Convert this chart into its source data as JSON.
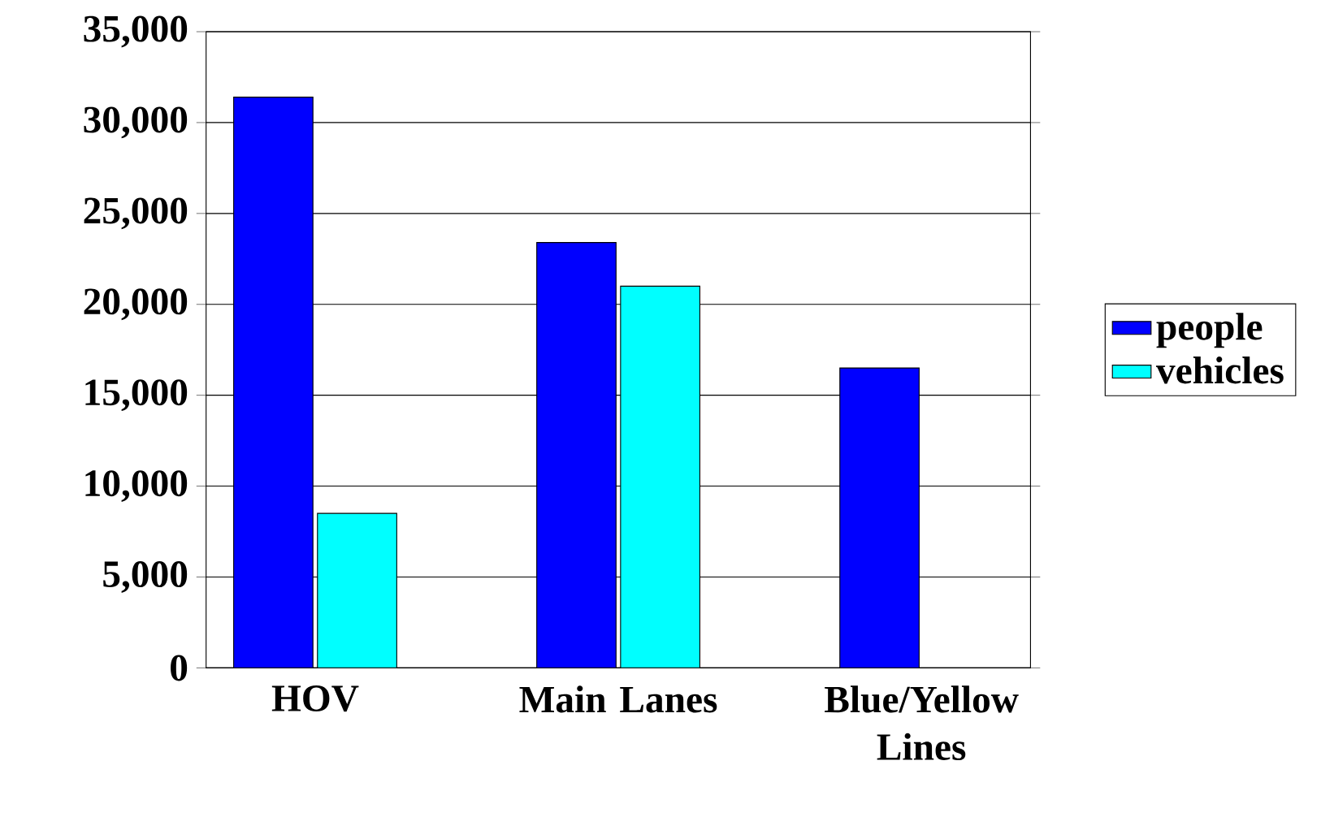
{
  "chart_data": {
    "type": "bar",
    "categories": [
      "HOV",
      "Main Lanes",
      "Blue/Yellow Lines"
    ],
    "series": [
      {
        "name": "people",
        "color": "#0000ff",
        "values": [
          31400,
          23400,
          16500
        ]
      },
      {
        "name": "vehicles",
        "color": "#00ffff",
        "values": [
          8500,
          21000,
          null
        ]
      }
    ],
    "ylim": [
      0,
      35000
    ],
    "yticks": [
      {
        "value": 0,
        "label": "0"
      },
      {
        "value": 5000,
        "label": "5,000"
      },
      {
        "value": 10000,
        "label": "10,000"
      },
      {
        "value": 15000,
        "label": "15,000"
      },
      {
        "value": 20000,
        "label": "20,000"
      },
      {
        "value": 25000,
        "label": "25,000"
      },
      {
        "value": 30000,
        "label": "30,000"
      },
      {
        "value": 35000,
        "label": "35,000"
      }
    ],
    "grid": "y",
    "legend": "right"
  }
}
